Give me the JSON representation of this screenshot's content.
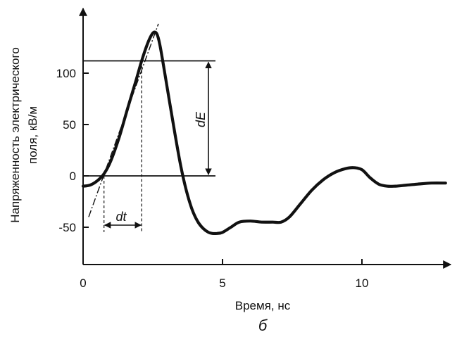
{
  "chart_data": {
    "type": "line",
    "xlabel": "Время, нс",
    "ylabel_lines": [
      "Напряженность электрического",
      "поля, кВ/м"
    ],
    "caption": "б",
    "xlim": [
      0,
      13
    ],
    "ylim": [
      -65,
      145
    ],
    "x_ticks": [
      0,
      5,
      10
    ],
    "y_ticks": [
      -50,
      0,
      50,
      100
    ],
    "grid": false,
    "series": [
      {
        "x": [
          0,
          0.25,
          0.5,
          0.75,
          1.0,
          1.3,
          1.6,
          1.9,
          2.1,
          2.3,
          2.45,
          2.55,
          2.65,
          2.75,
          2.9,
          3.1,
          3.3,
          3.5,
          3.7,
          3.9,
          4.1,
          4.3,
          4.5,
          4.65,
          4.8,
          5.0,
          5.3,
          5.6,
          6.0,
          6.4,
          6.8,
          7.1,
          7.4,
          7.8,
          8.2,
          8.6,
          9.0,
          9.4,
          9.7,
          10.0,
          10.3,
          10.6,
          10.9,
          11.2,
          11.6,
          12.0,
          12.5,
          13.0
        ],
        "y": [
          -10,
          -9,
          -5,
          2,
          15,
          38,
          66,
          93,
          112,
          128,
          137,
          140,
          138,
          128,
          105,
          72,
          40,
          10,
          -14,
          -32,
          -44,
          -51,
          -55,
          -56,
          -56,
          -55,
          -50,
          -45,
          -44,
          -45,
          -45,
          -45,
          -40,
          -27,
          -14,
          -4,
          3,
          7,
          8,
          6,
          -2,
          -8,
          -10,
          -10,
          -9,
          -8,
          -7,
          -7
        ]
      }
    ],
    "annotations": {
      "dE_label": "dE",
      "dt_label": "dt",
      "dE_value_range": [
        0,
        112
      ],
      "dt_range": [
        0.75,
        2.1
      ],
      "tangent_points": [
        [
          0.2,
          -40
        ],
        [
          2.7,
          148
        ]
      ]
    }
  }
}
